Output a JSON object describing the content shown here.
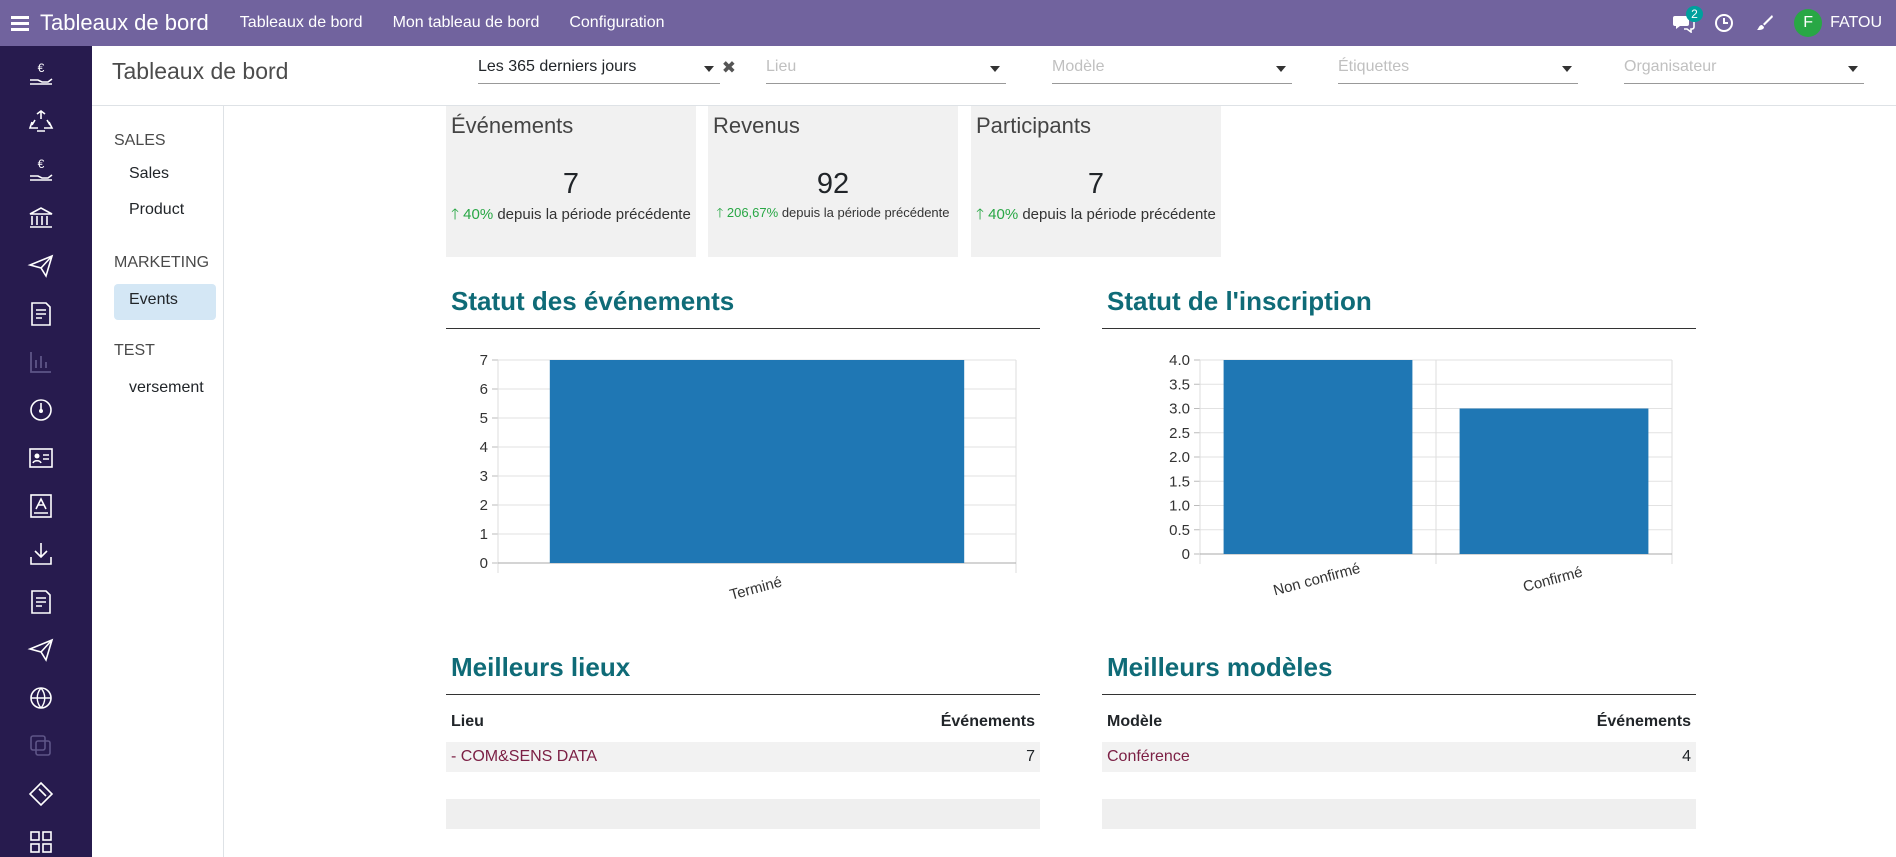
{
  "topbar": {
    "app_title": "Tableaux de bord",
    "nav": [
      "Tableaux de bord",
      "Mon tableau de bord",
      "Configuration"
    ],
    "message_count": "2",
    "user_initial": "F",
    "user_name": "FATOU"
  },
  "left_apps": [
    "accounting-icon",
    "recycle-icon",
    "accounting-icon",
    "bank-icon",
    "send-icon",
    "document-icon",
    "bar-chart-icon",
    "gauge-icon",
    "contact-card-icon",
    "sign-icon",
    "download-icon",
    "document-icon",
    "send-icon",
    "globe-icon",
    "copy-icon",
    "ticket-icon",
    "apps-grid-icon"
  ],
  "control_panel": {
    "title": "Tableaux de bord",
    "date_filter": "Les 365 derniers jours",
    "filters": {
      "lieu": "Lieu",
      "modele": "Modèle",
      "etiquettes": "Étiquettes",
      "organisateur": "Organisateur"
    }
  },
  "sidebar": {
    "sections": [
      {
        "title": "SALES",
        "items": [
          "Sales",
          "Product"
        ]
      },
      {
        "title": "MARKETING",
        "items": [
          "Events"
        ]
      },
      {
        "title": "TEST",
        "items": [
          "versement"
        ]
      }
    ],
    "active": "Events"
  },
  "kpis": [
    {
      "title": "Événements",
      "value": "7",
      "pct": "40%",
      "label": "depuis la période précédente"
    },
    {
      "title": "Revenus",
      "value": "92",
      "pct": "206,67%",
      "label": "depuis la période précédente"
    },
    {
      "title": "Participants",
      "value": "7",
      "pct": "40%",
      "label": "depuis la période précédente"
    }
  ],
  "chart_data": [
    {
      "type": "bar",
      "title": "Statut des événements",
      "categories": [
        "Terminé"
      ],
      "values": [
        7
      ],
      "ylim": [
        0,
        7
      ],
      "yticks": [
        0,
        1,
        2,
        3,
        4,
        5,
        6,
        7
      ],
      "ytick_labels": [
        "0",
        "1",
        "2",
        "3",
        "4",
        "5",
        "6",
        "7"
      ],
      "grid": true,
      "color": "#1f77b4"
    },
    {
      "type": "bar",
      "title": "Statut de l'inscription",
      "categories": [
        "Non confirmé",
        "Confirmé"
      ],
      "values": [
        4,
        3
      ],
      "ylim": [
        0,
        4
      ],
      "yticks": [
        0,
        0.5,
        1,
        1.5,
        2,
        2.5,
        3,
        3.5,
        4
      ],
      "ytick_labels": [
        "0",
        "0.5",
        "1.0",
        "1.5",
        "2.0",
        "2.5",
        "3.0",
        "3.5",
        "4.0"
      ],
      "grid": true,
      "color": "#1f77b4"
    }
  ],
  "tables": {
    "lieux": {
      "title": "Meilleurs lieux",
      "col1": "Lieu",
      "col2": "Événements",
      "rows": [
        {
          "name": "- COM&SENS DATA",
          "count": "7"
        }
      ]
    },
    "modeles": {
      "title": "Meilleurs modèles",
      "col1": "Modèle",
      "col2": "Événements",
      "rows": [
        {
          "name": "Conférence",
          "count": "4"
        }
      ]
    }
  }
}
